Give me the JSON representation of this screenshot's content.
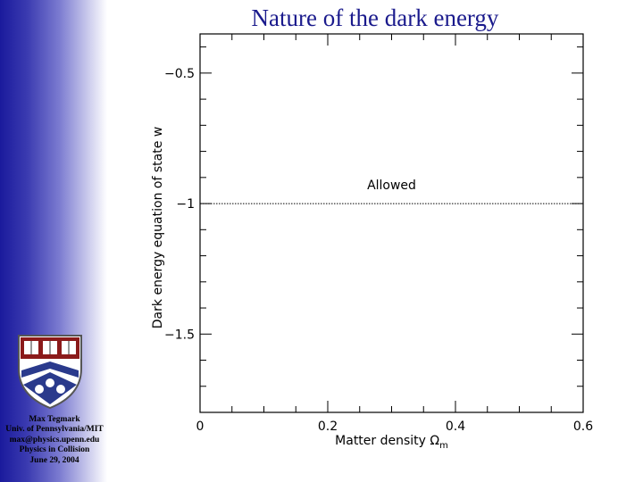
{
  "slide": {
    "title": "Nature of the dark energy",
    "credits": [
      "Max Tegmark",
      "Univ. of Pennsylvania/MIT",
      "max@physics.upenn.edu",
      "Physics in Collision",
      "June 29, 2004"
    ]
  },
  "chart_data": {
    "type": "line",
    "title": "",
    "xlabel": "Matter density Ω",
    "xlabel_subscript": "m",
    "ylabel": "Dark energy equation of state w",
    "xlim": [
      0,
      0.6
    ],
    "ylim": [
      -1.8,
      -0.35
    ],
    "x_ticks": [
      0,
      0.2,
      0.4,
      0.6
    ],
    "x_tick_labels": [
      "0",
      "0.2",
      "0.4",
      "0.6"
    ],
    "y_ticks": [
      -0.5,
      -1,
      -1.5
    ],
    "y_tick_labels": [
      "−0.5",
      "−1",
      "−1.5"
    ],
    "x_minor_step": 0.05,
    "y_minor_step": 0.1,
    "series": [
      {
        "x": [
          0,
          0.6
        ],
        "values": [
          -1,
          -1
        ],
        "style": "dotted",
        "color": "#000000"
      }
    ],
    "annotations": [
      {
        "text": "Allowed",
        "x": 0.3,
        "y": -0.945
      }
    ],
    "grid": false
  }
}
